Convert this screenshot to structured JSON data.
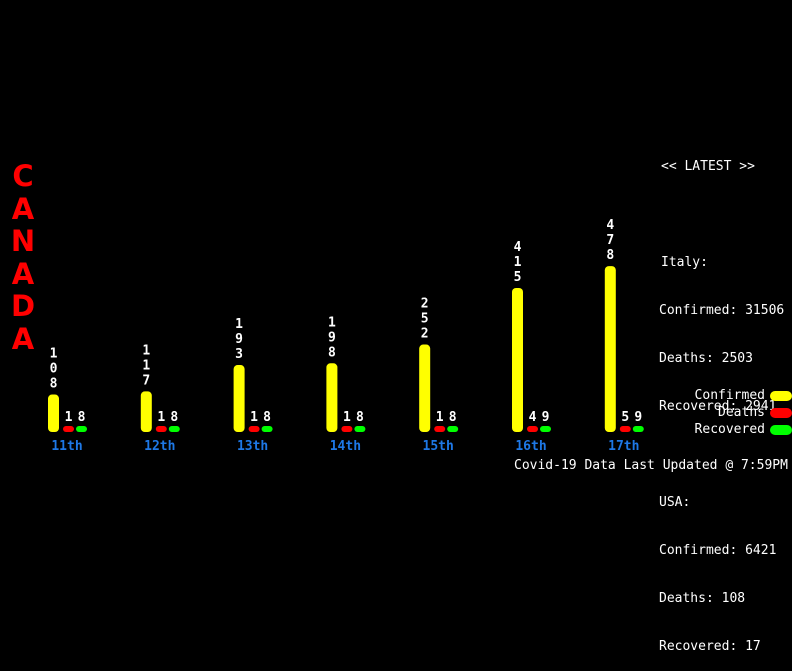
{
  "country": "CANADA",
  "latest": {
    "header": "<< LATEST >>",
    "countries": [
      {
        "name": "Italy:",
        "confirmed": "Confirmed: 31506",
        "deaths": "Deaths: 2503",
        "recovered": "Recovered: 2941"
      },
      {
        "name": "USA:",
        "confirmed": "Confirmed: 6421",
        "deaths": "Deaths: 108",
        "recovered": "Recovered: 17"
      }
    ]
  },
  "legend": {
    "confirmed": "Confirmed",
    "deaths": "Deaths",
    "recovered": "Recovered"
  },
  "footer": "Covid-19 Data Last Updated @ 7:59PM",
  "colors": {
    "background": "#000000",
    "country": "#ff0000",
    "confirmed": "#ffff00",
    "deaths": "#ff0000",
    "recovered": "#00ff00",
    "day_label": "#1e78e6",
    "text": "#ffffff"
  },
  "chart_data": {
    "type": "bar",
    "categories": [
      "11th",
      "12th",
      "13th",
      "14th",
      "15th",
      "16th",
      "17th"
    ],
    "series": [
      {
        "name": "Confirmed",
        "values": [
          108,
          117,
          193,
          198,
          252,
          415,
          478
        ]
      },
      {
        "name": "Deaths",
        "values": [
          1,
          1,
          1,
          1,
          1,
          4,
          5
        ]
      },
      {
        "name": "Recovered",
        "values": [
          8,
          8,
          8,
          8,
          8,
          9,
          9
        ]
      }
    ],
    "legend_position": "bottom-right",
    "grid": false
  }
}
